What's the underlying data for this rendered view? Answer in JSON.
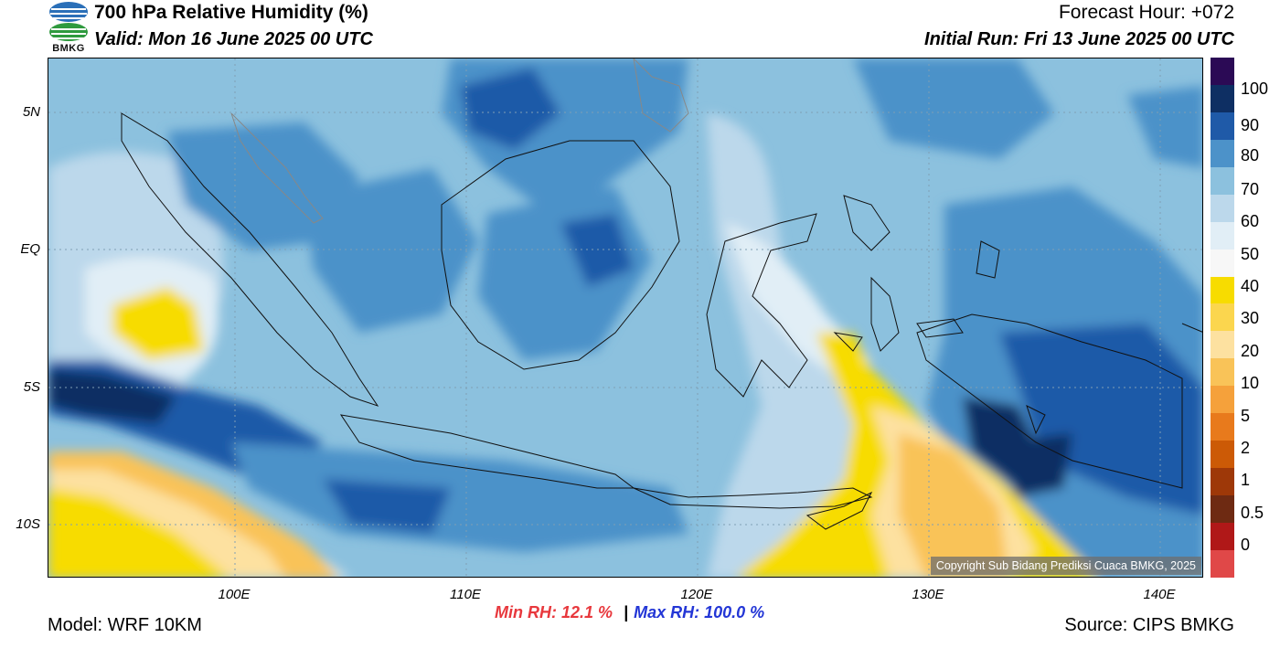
{
  "header": {
    "title": "700 hPa Relative Humidity (%)",
    "valid": "Valid: Mon 16 June 2025 00 UTC",
    "forecast_hour": "Forecast Hour: +072",
    "initial_run": "Initial Run: Fri 13 June 2025 00 UTC"
  },
  "logo": {
    "text": "BMKG"
  },
  "map": {
    "lat_labels": [
      "5N",
      "EQ",
      "5S",
      "10S"
    ],
    "lon_labels": [
      "100E",
      "110E",
      "120E",
      "130E",
      "140E"
    ],
    "copyright": "Copyright Sub Bidang Prediksi Cuaca BMKG, 2025"
  },
  "colorbar": {
    "labels": [
      "100",
      "90",
      "80",
      "70",
      "60",
      "50",
      "40",
      "30",
      "20",
      "10",
      "5",
      "2",
      "1",
      "0.5",
      "0"
    ],
    "colors": [
      "#2b0a55",
      "#0e2f63",
      "#1f5aa8",
      "#4c92c9",
      "#8cc1de",
      "#bcd8eb",
      "#e1eef6",
      "#f7f7f7",
      "#f7dc00",
      "#fbd64e",
      "#fde1a0",
      "#f9c358",
      "#f5a13b",
      "#e87a1c",
      "#cc5a06",
      "#9e3808",
      "#6e2a12",
      "#b01818",
      "#e04848"
    ]
  },
  "stats": {
    "min_rh": "Min RH:  12.1 %",
    "separator": "|",
    "max_rh": "Max RH: 100.0 %"
  },
  "footer": {
    "model": "Model: WRF 10KM",
    "source": "Source: CIPS BMKG"
  }
}
